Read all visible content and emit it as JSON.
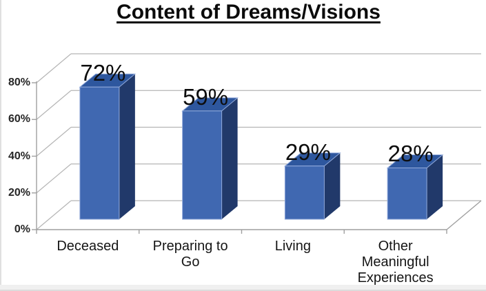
{
  "page": {
    "background": "#ffffff",
    "bottom_strip_color": "#f0f0f0",
    "left_strip_color": "#e0e0e0"
  },
  "chart_data": {
    "type": "bar",
    "style": "3d-column",
    "title": "Content of Dreams/Visions",
    "categories": [
      "Deceased",
      "Preparing to Go",
      "Living",
      "Other Meaningful Experiences"
    ],
    "values": [
      72,
      59,
      29,
      28
    ],
    "data_labels": [
      "72%",
      "59%",
      "29%",
      "28%"
    ],
    "y_ticks": [
      0,
      20,
      40,
      60,
      80
    ],
    "y_tick_labels": [
      "0%",
      "20%",
      "40%",
      "60%",
      "80%"
    ],
    "ylim": [
      0,
      80
    ],
    "xlabel": "",
    "ylabel": "",
    "grid": true,
    "legend": false,
    "colors": {
      "bar_front": "#4068b1",
      "bar_top": "#2e579e",
      "bar_side": "#21396a",
      "bar_edge_highlight": "#93abdb",
      "gridline": "#b5b5b5",
      "axis": "#9f9f9f",
      "title_text": "#0b0b0b",
      "data_label_text": "#0d0d0d",
      "tick_label_text": "#262626",
      "category_label_text": "#151515"
    }
  }
}
